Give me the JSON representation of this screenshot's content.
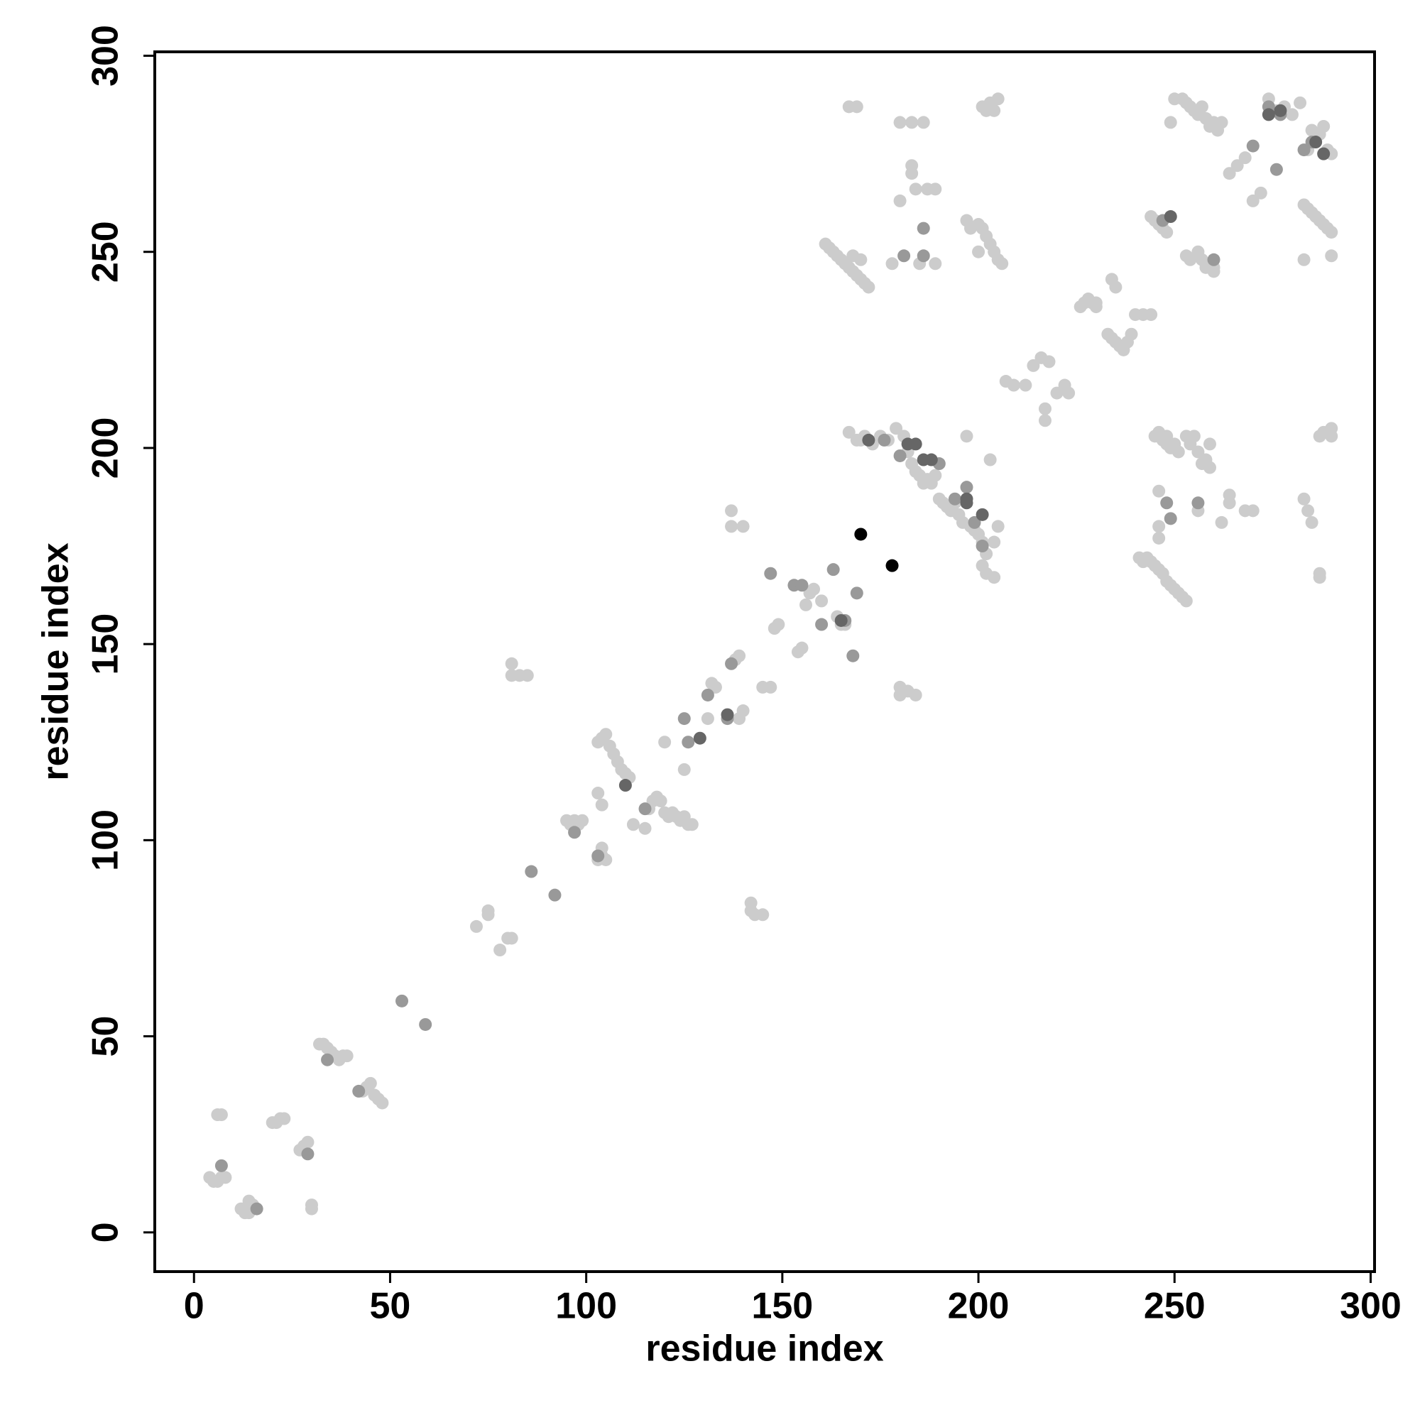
{
  "chart_data": {
    "type": "scatter",
    "x_label": "residue index",
    "y_label": "residue index",
    "xlim": [
      -10,
      301
    ],
    "ylim": [
      -10,
      301
    ],
    "xticks": [
      0,
      50,
      100,
      150,
      200,
      250,
      300
    ],
    "yticks": [
      0,
      50,
      100,
      150,
      200,
      250,
      300
    ],
    "series": [
      {
        "color": "#cccccc",
        "x": [
          4,
          5,
          6,
          7,
          8,
          6,
          7,
          12,
          13,
          14,
          15,
          14,
          20,
          21,
          22,
          23,
          27,
          28,
          29,
          30,
          30,
          32,
          33,
          34,
          35,
          36,
          37,
          38,
          39,
          43,
          44,
          45,
          46,
          47,
          48,
          72,
          75,
          75,
          78,
          80,
          81,
          81,
          81,
          83,
          85,
          95,
          96,
          97,
          98,
          99,
          103,
          104,
          105,
          104,
          103,
          104,
          103,
          104,
          105,
          106,
          107,
          108,
          109,
          110,
          111,
          112,
          115,
          116,
          117,
          118,
          119,
          120,
          121,
          122,
          123,
          124,
          125,
          126,
          127,
          120,
          125,
          132,
          133,
          131,
          137,
          137,
          140,
          138,
          139,
          140,
          139,
          142,
          142,
          143,
          145,
          145,
          147,
          148,
          149,
          154,
          155,
          156,
          157,
          158,
          160,
          164,
          165,
          166,
          167,
          169,
          167,
          169,
          171,
          173,
          175,
          177,
          170,
          161,
          162,
          163,
          164,
          165,
          166,
          167,
          168,
          169,
          170,
          171,
          172,
          168,
          170,
          178,
          180,
          180,
          183,
          183,
          183,
          184,
          187,
          189,
          186,
          185,
          189,
          180,
          180,
          182,
          184,
          179,
          181,
          182,
          183,
          184,
          185,
          186,
          187,
          188,
          189,
          190,
          191,
          192,
          193,
          194,
          195,
          196,
          197,
          198,
          199,
          200,
          201,
          202,
          201,
          202,
          204,
          203,
          205,
          204,
          197,
          198,
          200,
          202,
          203,
          204,
          205,
          206,
          201,
          200,
          201,
          203,
          205,
          202,
          204,
          207,
          209,
          212,
          214,
          216,
          218,
          217,
          217,
          220,
          222,
          223,
          226,
          227,
          228,
          229,
          230,
          230,
          234,
          235,
          233,
          234,
          235,
          236,
          237,
          238,
          239,
          240,
          242,
          244,
          241,
          242,
          243,
          244,
          245,
          246,
          247,
          248,
          249,
          250,
          251,
          252,
          253,
          245,
          246,
          247,
          248,
          249,
          250,
          251,
          253,
          254,
          255,
          256,
          257,
          258,
          259,
          259,
          246,
          246,
          246,
          256,
          248,
          244,
          245,
          246,
          247,
          248,
          249,
          250,
          252,
          253,
          254,
          255,
          256,
          257,
          258,
          259,
          260,
          261,
          262,
          253,
          254,
          256,
          257,
          258,
          260,
          260,
          262,
          264,
          264,
          268,
          270,
          264,
          266,
          268,
          270,
          272,
          274,
          276,
          278,
          280,
          282,
          283,
          284,
          285,
          286,
          287,
          288,
          289,
          290,
          283,
          284,
          285,
          287,
          288,
          289,
          290,
          283,
          284,
          285,
          287,
          288,
          290,
          290,
          287,
          287,
          290
        ],
        "y": [
          14,
          13,
          13,
          14,
          14,
          30,
          30,
          6,
          5,
          5,
          7,
          8,
          28,
          28,
          29,
          29,
          21,
          22,
          23,
          7,
          6,
          48,
          48,
          47,
          46,
          45,
          44,
          45,
          45,
          36,
          37,
          38,
          35,
          34,
          33,
          78,
          82,
          81,
          72,
          75,
          75,
          145,
          142,
          142,
          142,
          105,
          104,
          105,
          104,
          105,
          95,
          96,
          95,
          98,
          112,
          109,
          125,
          126,
          127,
          124,
          122,
          120,
          118,
          117,
          116,
          104,
          103,
          108,
          110,
          111,
          110,
          107,
          106,
          107,
          106,
          105,
          106,
          104,
          104,
          125,
          118,
          140,
          139,
          131,
          184,
          180,
          180,
          146,
          147,
          133,
          131,
          82,
          84,
          81,
          81,
          139,
          139,
          154,
          155,
          148,
          149,
          160,
          163,
          164,
          161,
          157,
          155,
          155,
          287,
          287,
          204,
          202,
          203,
          201,
          203,
          202,
          202,
          252,
          251,
          250,
          249,
          248,
          247,
          246,
          245,
          244,
          243,
          242,
          241,
          249,
          248,
          247,
          283,
          263,
          283,
          272,
          270,
          266,
          266,
          266,
          283,
          247,
          247,
          139,
          137,
          138,
          137,
          205,
          203,
          199,
          196,
          194,
          193,
          191,
          192,
          191,
          193,
          187,
          186,
          185,
          184,
          186,
          183,
          181,
          203,
          180,
          179,
          178,
          176,
          173,
          170,
          168,
          167,
          197,
          180,
          176,
          258,
          256,
          257,
          254,
          252,
          250,
          248,
          247,
          256,
          250,
          287,
          288,
          289,
          286,
          286,
          217,
          216,
          216,
          221,
          223,
          222,
          210,
          207,
          214,
          216,
          214,
          236,
          237,
          238,
          237,
          236,
          237,
          243,
          241,
          229,
          228,
          227,
          226,
          225,
          227,
          229,
          234,
          234,
          234,
          172,
          171,
          172,
          171,
          170,
          169,
          168,
          166,
          165,
          164,
          163,
          162,
          161,
          203,
          204,
          202,
          201,
          200,
          201,
          199,
          203,
          201,
          203,
          199,
          196,
          197,
          201,
          195,
          189,
          180,
          177,
          184,
          203,
          259,
          258,
          257,
          256,
          255,
          283,
          289,
          289,
          288,
          287,
          286,
          285,
          287,
          284,
          282,
          283,
          281,
          283,
          249,
          248,
          250,
          248,
          246,
          245,
          246,
          181,
          186,
          188,
          184,
          184,
          270,
          272,
          274,
          263,
          265,
          289,
          286,
          287,
          285,
          288,
          262,
          261,
          260,
          259,
          258,
          257,
          256,
          255,
          248,
          276,
          281,
          280,
          282,
          276,
          275,
          187,
          184,
          181,
          203,
          204,
          205,
          203,
          168,
          167,
          249
        ]
      },
      {
        "color": "#999999",
        "x": [
          7,
          16,
          29,
          34,
          42,
          53,
          59,
          86,
          92,
          97,
          103,
          115,
          125,
          126,
          131,
          136,
          137,
          147,
          153,
          155,
          160,
          163,
          166,
          168,
          169,
          176,
          180,
          181,
          186,
          186,
          190,
          194,
          197,
          199,
          201,
          248,
          249,
          256,
          260,
          247,
          270,
          276,
          274,
          277,
          283,
          285
        ],
        "y": [
          17,
          6,
          20,
          44,
          36,
          59,
          53,
          92,
          86,
          102,
          96,
          108,
          131,
          125,
          137,
          131,
          145,
          168,
          165,
          165,
          155,
          169,
          156,
          147,
          163,
          202,
          198,
          249,
          256,
          249,
          196,
          187,
          190,
          181,
          175,
          186,
          182,
          186,
          248,
          258,
          277,
          271,
          287,
          285,
          276,
          278
        ]
      },
      {
        "color": "#666666",
        "x": [
          110,
          129,
          136,
          165,
          182,
          184,
          186,
          188,
          197,
          197,
          201,
          172,
          274,
          277,
          249,
          286,
          288
        ],
        "y": [
          114,
          126,
          132,
          156,
          201,
          201,
          197,
          197,
          187,
          186,
          183,
          202,
          285,
          286,
          259,
          278,
          275
        ]
      },
      {
        "color": "#000000",
        "x": [
          170,
          178
        ],
        "y": [
          178,
          170
        ]
      }
    ]
  }
}
